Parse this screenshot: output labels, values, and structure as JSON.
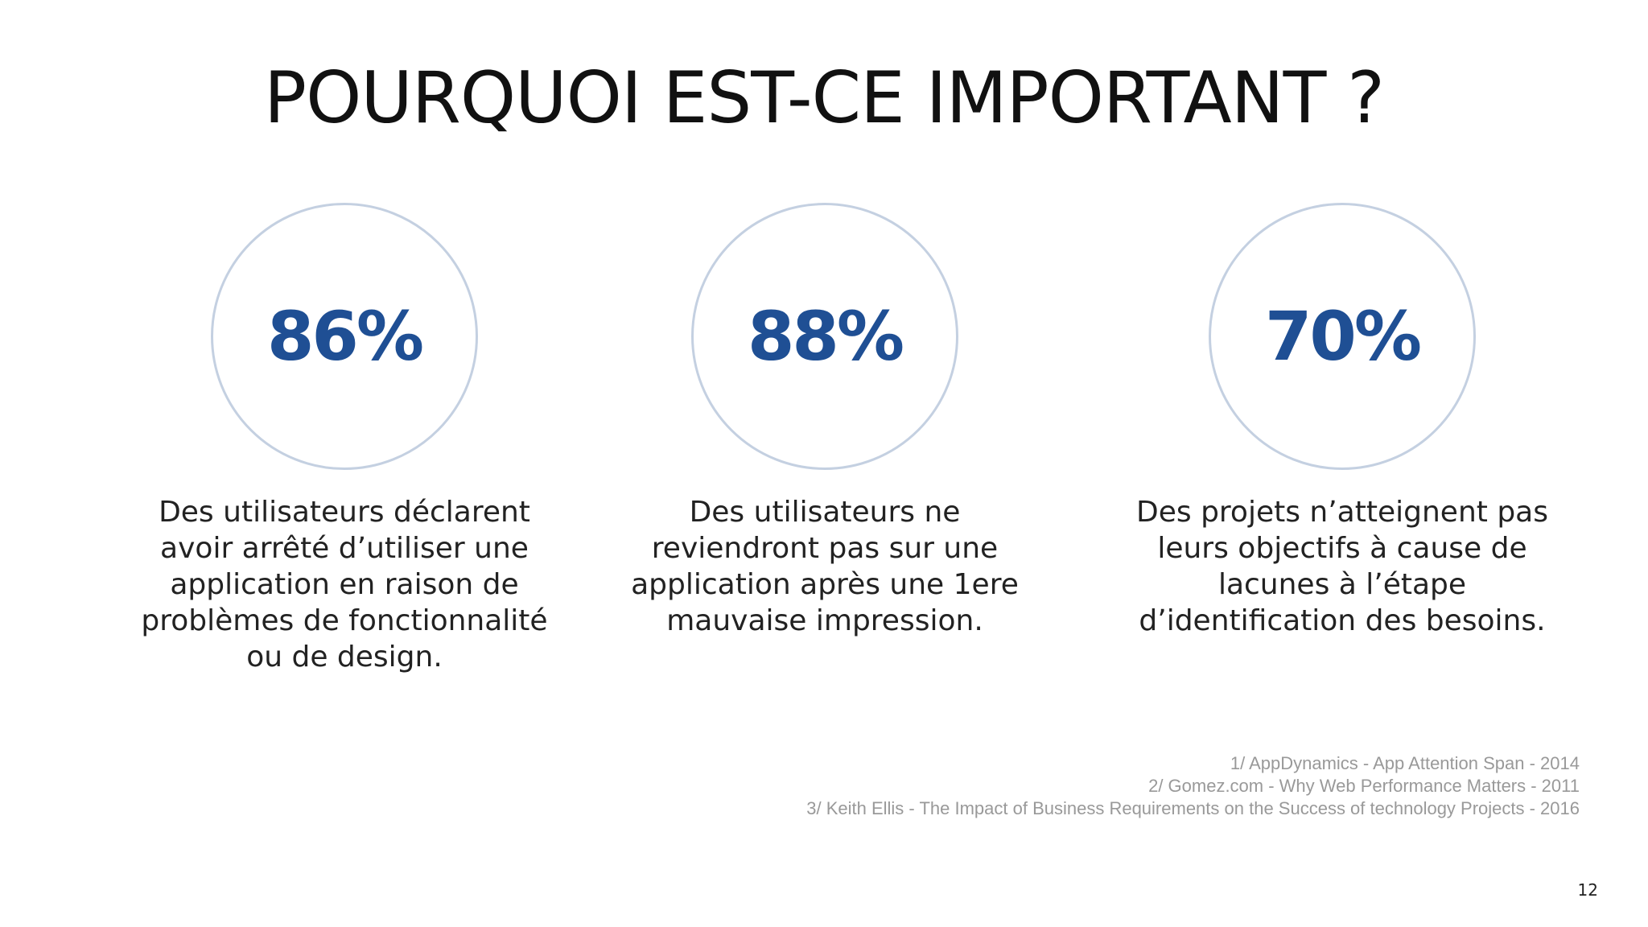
{
  "title": "POURQUOI EST-CE IMPORTANT ?",
  "stats": [
    {
      "value": "86%",
      "description": [
        "Des utilisateurs déclarent",
        "avoir arrêté d’utiliser une",
        "application en raison de",
        "problèmes de fonctionnalité",
        "ou de design."
      ]
    },
    {
      "value": "88%",
      "description": [
        "Des utilisateurs ne",
        "reviendront pas sur une",
        "application après une 1ere",
        "mauvaise impression."
      ]
    },
    {
      "value": "70%",
      "description": [
        "Des projets n’atteignent pas",
        "leurs objectifs à cause de",
        "lacunes à l’étape",
        "d’identification des besoins."
      ]
    }
  ],
  "sources": [
    "1/ AppDynamics - App Attention Span - 2014",
    "2/ Gomez.com - Why Web Performance Matters - 2011",
    "3/ Keith Ellis - The Impact of Business Requirements on the Success of technology Projects - 2016"
  ],
  "page_number": "12",
  "colors": {
    "accent": "#1f4f94",
    "circle_border": "#c4d0e1",
    "sources_text": "#999999"
  }
}
